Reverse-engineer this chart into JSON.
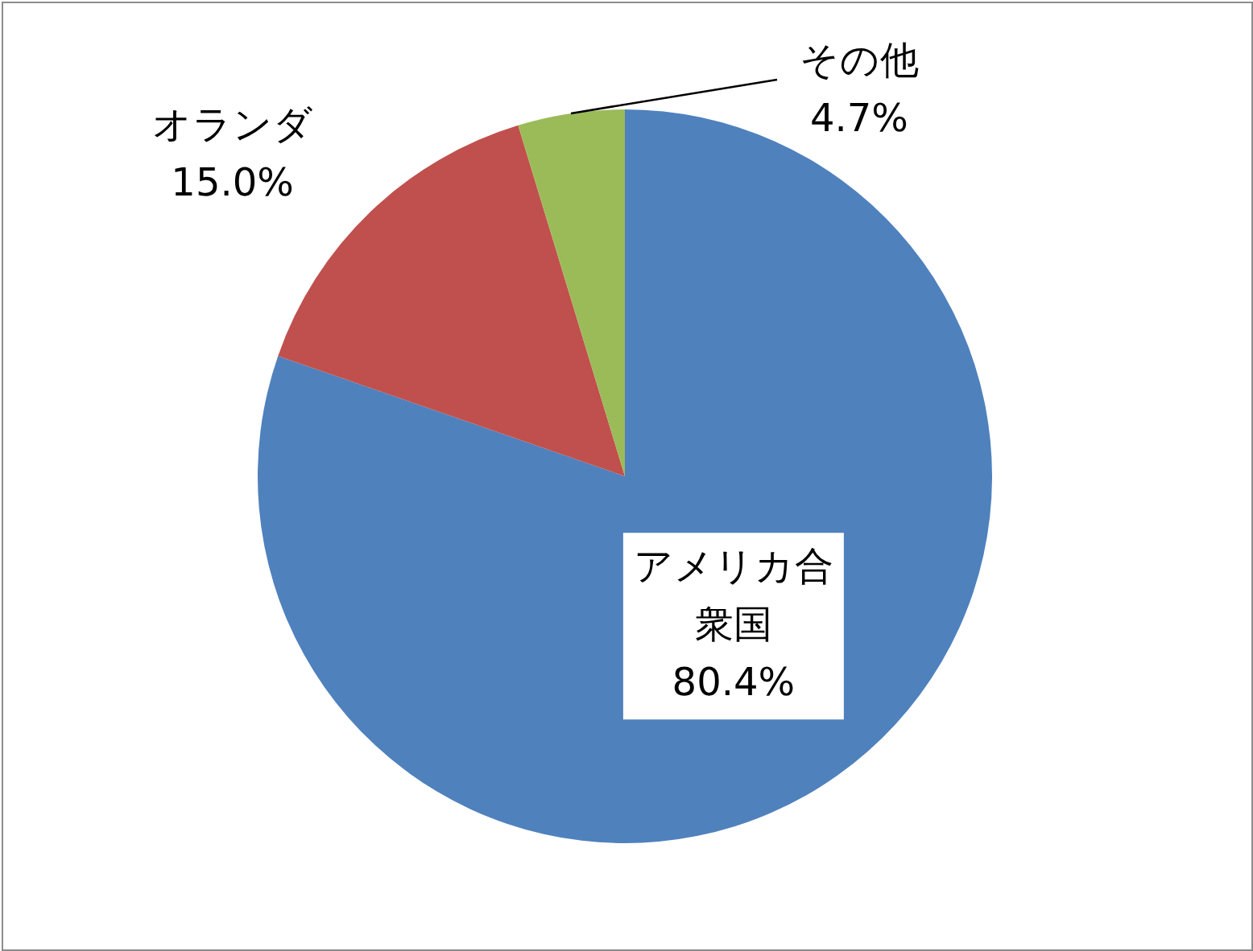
{
  "chart_data": {
    "type": "pie",
    "categories": [
      "アメリカ合衆国",
      "オランダ",
      "その他"
    ],
    "values": [
      80.4,
      15.0,
      4.7
    ],
    "colors": [
      "#4f81bd",
      "#c0504d",
      "#9bbb59"
    ],
    "value_labels": [
      "80.4%",
      "15.0%",
      "4.7%"
    ]
  }
}
